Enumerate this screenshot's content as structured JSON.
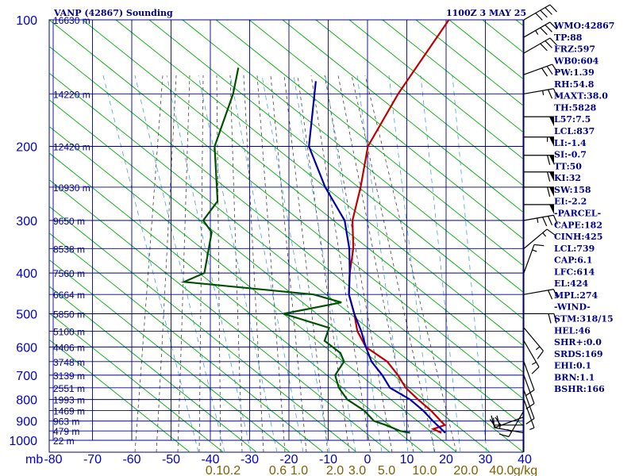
{
  "header": {
    "station": "VANP (42867) Sounding",
    "time": "1100Z  3 MAY 25"
  },
  "indices": [
    "WMO:42867",
    "TP:88",
    "FRZ:597",
    "WB0:604",
    "PW:1.39",
    "RH:54.8",
    "MAXT:38.0",
    "TH:5828",
    "L57:7.5",
    "LCL:837",
    "LI:-1.4",
    "SI:-0.7",
    "TT:50",
    "KI:32",
    "SW:158",
    "EI:-2.2",
    "-PARCEL-",
    "CAPE:182",
    "CINH:425",
    "LCL:739",
    "CAP:6.1",
    "LFC:614",
    "EL:424",
    "MPL:274",
    "-WIND-",
    "STM:318/15",
    "HEL:46",
    "SHR+:0.0",
    "SRDS:169",
    "EHI:0.1",
    "BRN:1.1",
    "BSHR:166"
  ],
  "chart_data": {
    "type": "line",
    "title": "VANP (42867) Sounding",
    "xlabel_unit": "mb",
    "x_tick_labels": [
      "-80",
      "-70",
      "-60",
      "-50",
      "-40",
      "-30",
      "-20",
      "-10",
      "0",
      "10",
      "20",
      "30",
      "40"
    ],
    "x_ticks": [
      -80,
      -70,
      -60,
      -50,
      -40,
      -30,
      -20,
      -10,
      0,
      10,
      20,
      30,
      40
    ],
    "y_ticks": [
      100,
      200,
      300,
      400,
      500,
      600,
      700,
      800,
      900,
      1000
    ],
    "y_tick_labels": [
      "100",
      "200",
      "300",
      "400",
      "500",
      "600",
      "700",
      "800",
      "900",
      "1000"
    ],
    "xlim": [
      -80,
      40
    ],
    "ylim": [
      100,
      1000
    ],
    "mixing_ratio_labels": [
      "0.1",
      "0.2",
      "0.6",
      "1.0",
      "2.0",
      "3.0",
      "5.0",
      "10.0",
      "20.0",
      "40.0"
    ],
    "mixing_ratio_unit": "g/kg",
    "height_labels": [
      {
        "p": 100,
        "label": "16630 m"
      },
      {
        "p": 150,
        "label": "14220 m"
      },
      {
        "p": 200,
        "label": "12420 m"
      },
      {
        "p": 250,
        "label": "10930 m"
      },
      {
        "p": 300,
        "label": "9650 m"
      },
      {
        "p": 350,
        "label": "8538 m"
      },
      {
        "p": 400,
        "label": "7560 m"
      },
      {
        "p": 450,
        "label": "6664 m"
      },
      {
        "p": 500,
        "label": "5850 m"
      },
      {
        "p": 550,
        "label": "5100 m"
      },
      {
        "p": 600,
        "label": "4406 m"
      },
      {
        "p": 650,
        "label": "3748 m"
      },
      {
        "p": 700,
        "label": "3139 m"
      },
      {
        "p": 750,
        "label": "2551 m"
      },
      {
        "p": 800,
        "label": "1993 m"
      },
      {
        "p": 850,
        "label": "1469 m"
      },
      {
        "p": 900,
        "label": "963 m"
      },
      {
        "p": 950,
        "label": "479 m"
      },
      {
        "p": 1000,
        "label": "22 m"
      }
    ],
    "series": [
      {
        "name": "temperature",
        "color": "#c00000",
        "points": [
          [
            -81,
            100
          ],
          [
            -76,
            150
          ],
          [
            -71,
            200
          ],
          [
            -63,
            250
          ],
          [
            -57,
            300
          ],
          [
            -50,
            350
          ],
          [
            -45,
            400
          ],
          [
            -40,
            450
          ],
          [
            -34,
            500
          ],
          [
            -29,
            550
          ],
          [
            -23,
            600
          ],
          [
            -14,
            650
          ],
          [
            -8,
            700
          ],
          [
            -3,
            750
          ],
          [
            3,
            800
          ],
          [
            9,
            850
          ],
          [
            14,
            900
          ],
          [
            16,
            920
          ],
          [
            14,
            940
          ],
          [
            17,
            960
          ]
        ]
      },
      {
        "name": "dewpoint",
        "color": "#005000",
        "points": [
          [
            -123,
            130
          ],
          [
            -118,
            150
          ],
          [
            -110,
            200
          ],
          [
            -96,
            270
          ],
          [
            -95,
            300
          ],
          [
            -90,
            320
          ],
          [
            -82,
            400
          ],
          [
            -85,
            420
          ],
          [
            -49,
            450
          ],
          [
            -40,
            470
          ],
          [
            -52,
            500
          ],
          [
            -37,
            540
          ],
          [
            -35,
            580
          ],
          [
            -28,
            620
          ],
          [
            -25,
            650
          ],
          [
            -24,
            700
          ],
          [
            -20,
            750
          ],
          [
            -15,
            800
          ],
          [
            -8,
            850
          ],
          [
            -3,
            900
          ],
          [
            1,
            920
          ],
          [
            6,
            950
          ],
          [
            9,
            960
          ]
        ]
      },
      {
        "name": "parcel",
        "color": "#0000aa",
        "points": [
          [
            -100,
            140
          ],
          [
            -86,
            200
          ],
          [
            -72,
            250
          ],
          [
            -59,
            300
          ],
          [
            -51,
            350
          ],
          [
            -45,
            400
          ],
          [
            -40,
            450
          ],
          [
            -34,
            500
          ],
          [
            -28,
            550
          ],
          [
            -23,
            600
          ],
          [
            -18,
            650
          ],
          [
            -12,
            700
          ],
          [
            -7,
            750
          ],
          [
            1,
            800
          ],
          [
            7,
            850
          ],
          [
            12,
            900
          ],
          [
            18,
            960
          ]
        ]
      }
    ],
    "wind_barbs": [
      {
        "p": 100,
        "dir": 240,
        "spd": 40
      },
      {
        "p": 110,
        "dir": 240,
        "spd": 35
      },
      {
        "p": 120,
        "dir": 240,
        "spd": 30
      },
      {
        "p": 135,
        "dir": 250,
        "spd": 30
      },
      {
        "p": 150,
        "dir": 260,
        "spd": 25
      },
      {
        "p": 170,
        "dir": 270,
        "spd": 50
      },
      {
        "p": 190,
        "dir": 270,
        "spd": 55
      },
      {
        "p": 210,
        "dir": 270,
        "spd": 60
      },
      {
        "p": 230,
        "dir": 270,
        "spd": 60
      },
      {
        "p": 250,
        "dir": 270,
        "spd": 60
      },
      {
        "p": 275,
        "dir": 270,
        "spd": 50
      },
      {
        "p": 300,
        "dir": 260,
        "spd": 35
      },
      {
        "p": 350,
        "dir": 230,
        "spd": 15
      },
      {
        "p": 400,
        "dir": 200,
        "spd": 15
      },
      {
        "p": 450,
        "dir": 260,
        "spd": 20
      },
      {
        "p": 500,
        "dir": 270,
        "spd": 20
      },
      {
        "p": 540,
        "dir": 320,
        "spd": 15
      },
      {
        "p": 580,
        "dir": 330,
        "spd": 15
      },
      {
        "p": 650,
        "dir": 340,
        "spd": 10
      },
      {
        "p": 700,
        "dir": 340,
        "spd": 10
      },
      {
        "p": 760,
        "dir": 340,
        "spd": 10
      },
      {
        "p": 800,
        "dir": 340,
        "spd": 5
      },
      {
        "p": 850,
        "dir": 30,
        "spd": 15
      },
      {
        "p": 880,
        "dir": 70,
        "spd": 20
      },
      {
        "p": 920,
        "dir": 90,
        "spd": 20
      },
      {
        "p": 960,
        "dir": 100,
        "spd": 15
      }
    ]
  },
  "colors": {
    "grid": "#00008b",
    "dry_adiabat": "#00aa00",
    "moist_adiabat": "#404040",
    "mixing_ratio": "#4aa0e0",
    "label": "#0000cc",
    "mixing_label": "#806000",
    "text_bold": "#00008b"
  }
}
